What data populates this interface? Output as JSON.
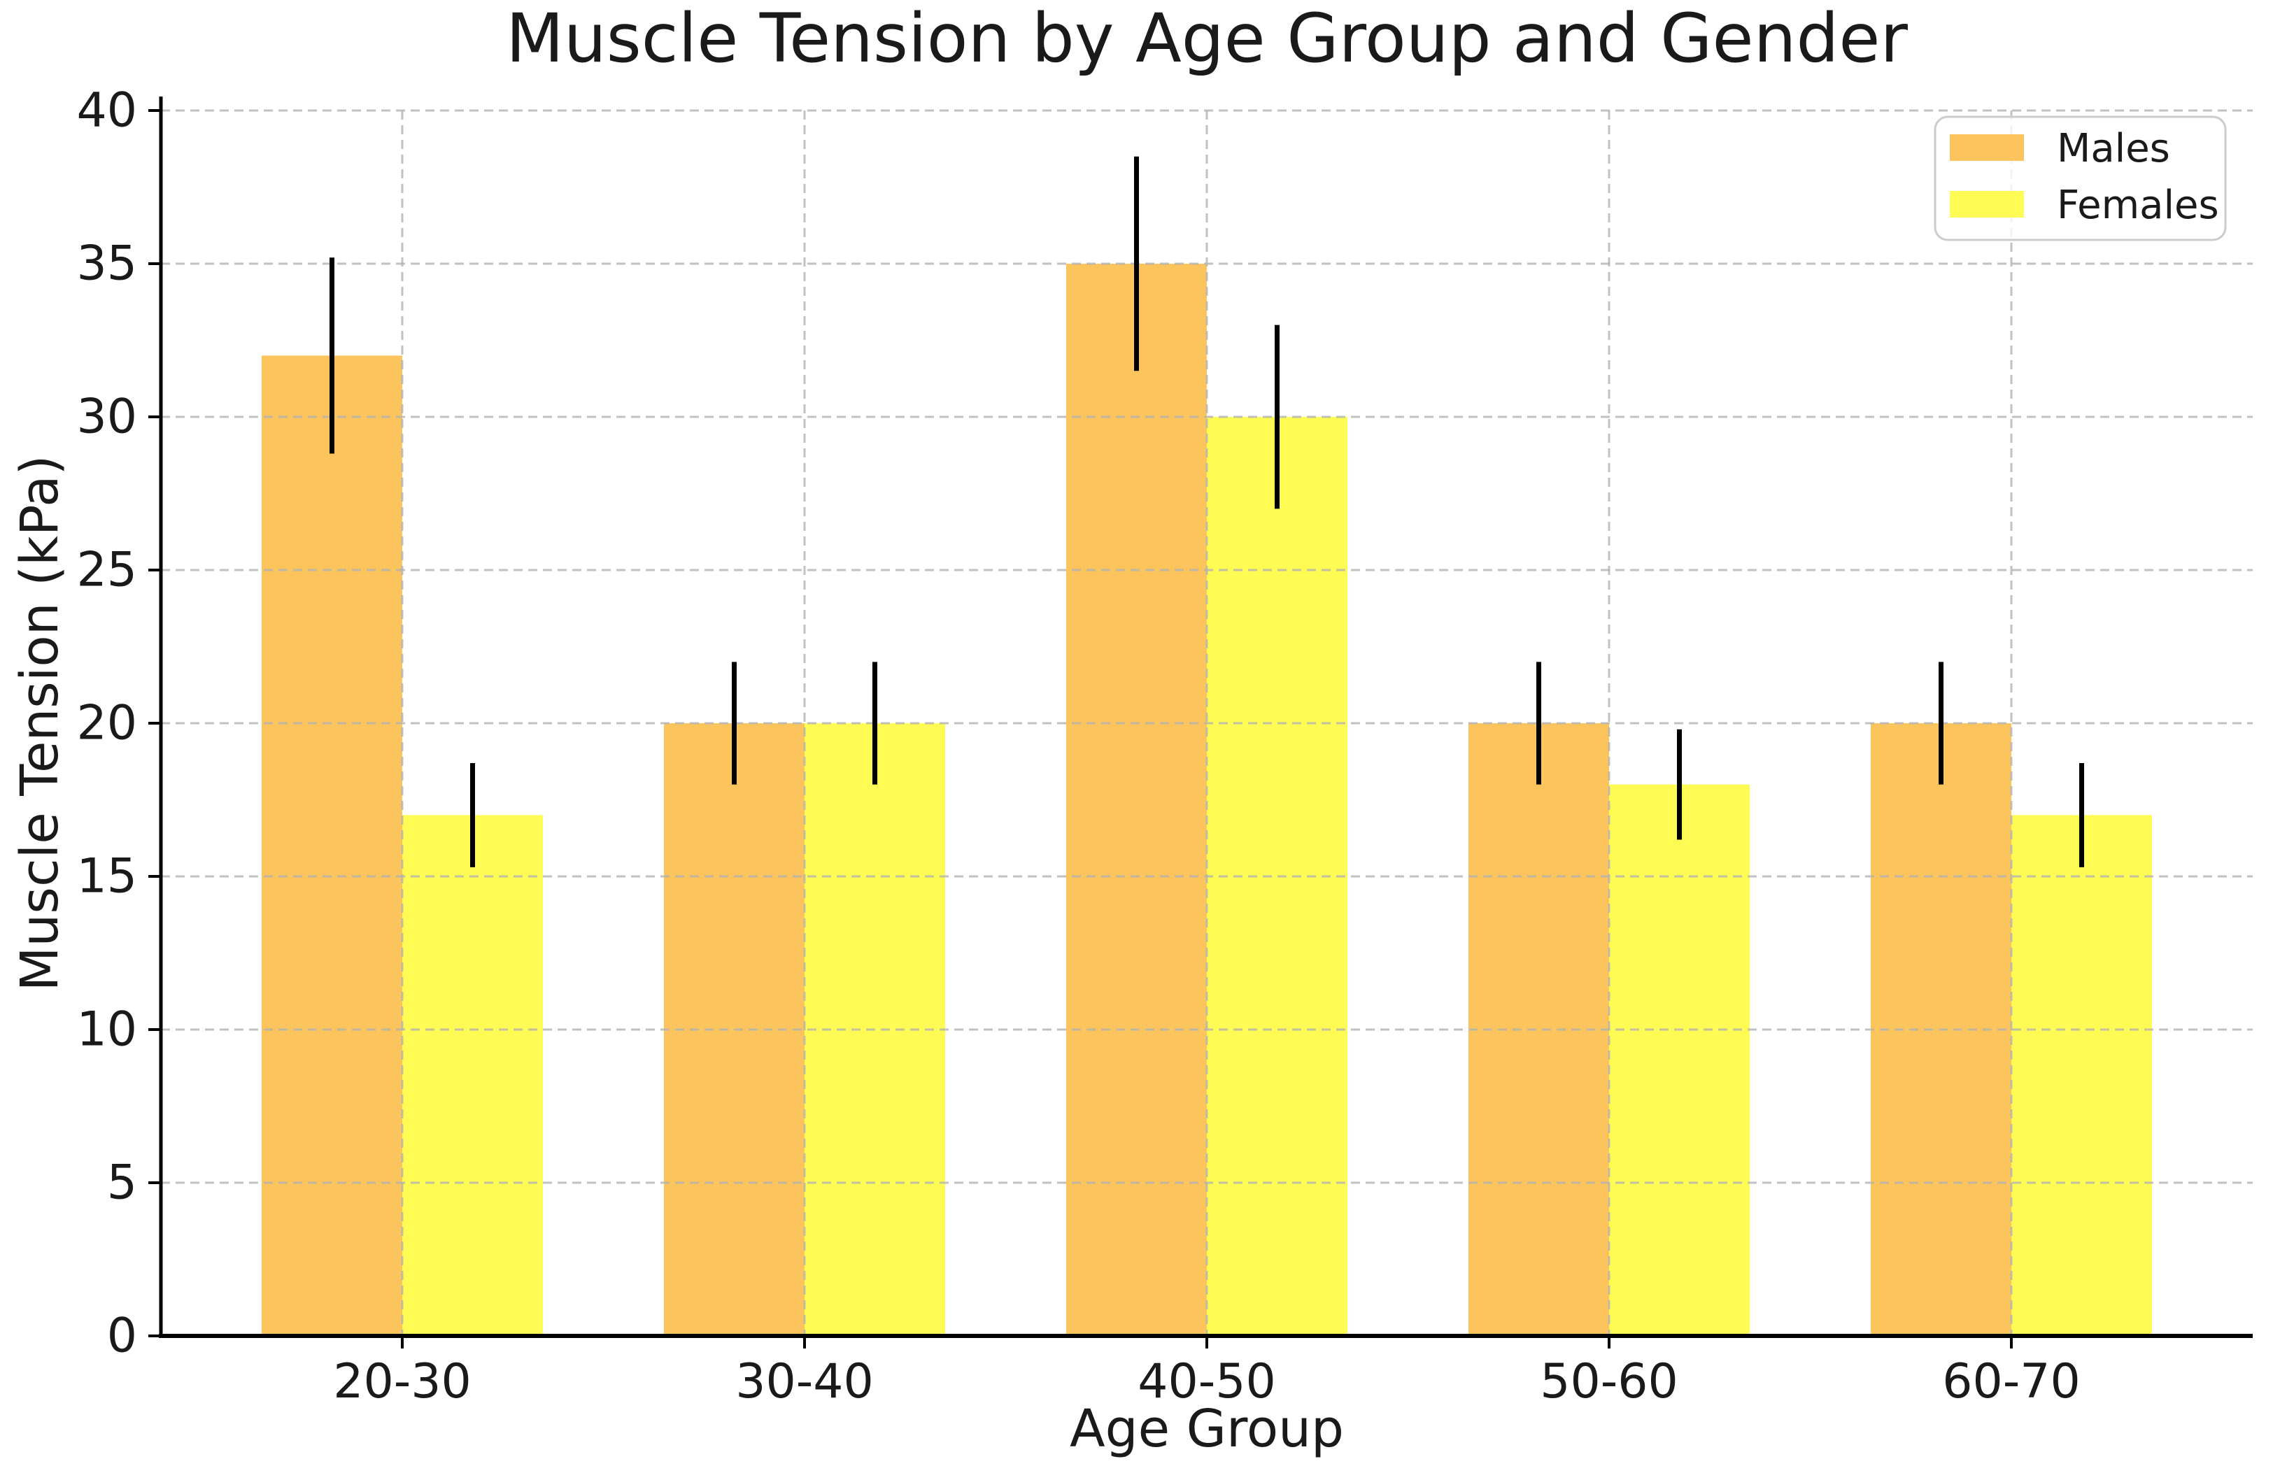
{
  "chart_data": {
    "type": "bar",
    "title": "Muscle Tension by Age Group and Gender",
    "xlabel": "Age Group",
    "ylabel": "Muscle Tension (kPa)",
    "categories": [
      "20-30",
      "30-40",
      "40-50",
      "50-60",
      "60-70"
    ],
    "series": [
      {
        "name": "Males",
        "color": "#FCC45C",
        "values": [
          32,
          20,
          35,
          20,
          20
        ],
        "errors": [
          3.2,
          2.0,
          3.5,
          2.0,
          2.0
        ]
      },
      {
        "name": "Females",
        "color": "#FFFB55",
        "values": [
          17,
          20,
          30,
          18,
          17
        ],
        "errors": [
          1.7,
          2.0,
          3.0,
          1.8,
          1.7
        ]
      }
    ],
    "ylim": [
      0,
      40
    ],
    "yticks": [
      0,
      5,
      10,
      15,
      20,
      25,
      30,
      35,
      40
    ],
    "bar_width": 0.35,
    "grid": "dashed, drawn above bars, both axes",
    "grid_color": "#b3b3b3",
    "error_bar_color": "#000000",
    "axis_color": "#000000",
    "text_color": "#1a1a1a",
    "legend_position": "upper right",
    "legend_border_color": "#cccccc",
    "background_color": "#ffffff"
  }
}
